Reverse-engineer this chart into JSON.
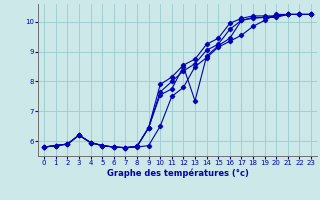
{
  "xlabel": "Graphe des températures (°c)",
  "bg_color": "#cce8e8",
  "line_color": "#0000bb",
  "grid_color": "#99cccc",
  "xlim": [
    -0.5,
    23.5
  ],
  "ylim": [
    5.5,
    10.6
  ],
  "yticks": [
    6,
    7,
    8,
    9,
    10
  ],
  "xticks": [
    0,
    1,
    2,
    3,
    4,
    5,
    6,
    7,
    8,
    9,
    10,
    11,
    12,
    13,
    14,
    15,
    16,
    17,
    18,
    19,
    20,
    21,
    22,
    23
  ],
  "line1_x": [
    0,
    1,
    2,
    3,
    4,
    5,
    6,
    7,
    8,
    9,
    10,
    11,
    12,
    13,
    14,
    15,
    16,
    17,
    18,
    19,
    20,
    21,
    22,
    23
  ],
  "line1_y": [
    5.8,
    5.85,
    5.9,
    6.2,
    5.95,
    5.85,
    5.8,
    5.78,
    5.8,
    5.85,
    6.5,
    7.5,
    7.8,
    8.5,
    8.8,
    9.15,
    9.35,
    9.55,
    9.85,
    10.05,
    10.25,
    10.25,
    10.25,
    10.25
  ],
  "line2_x": [
    0,
    1,
    2,
    3,
    4,
    5,
    6,
    7,
    8,
    9,
    10,
    11,
    12,
    13,
    14,
    15,
    16,
    17,
    18,
    19,
    20,
    21,
    22,
    23
  ],
  "line2_y": [
    5.8,
    5.85,
    5.9,
    6.2,
    5.95,
    5.85,
    5.8,
    5.78,
    5.82,
    6.45,
    7.65,
    8.0,
    8.35,
    8.6,
    9.05,
    9.25,
    9.75,
    10.05,
    10.15,
    10.15,
    10.15,
    10.25,
    10.25,
    10.25
  ],
  "line3_x": [
    0,
    1,
    2,
    3,
    4,
    5,
    6,
    7,
    8,
    9,
    10,
    11,
    12,
    13,
    14,
    15,
    16,
    17,
    18,
    19,
    20,
    21,
    22,
    23
  ],
  "line3_y": [
    5.8,
    5.85,
    5.9,
    6.2,
    5.95,
    5.85,
    5.8,
    5.78,
    5.82,
    6.45,
    7.9,
    8.15,
    8.55,
    8.75,
    9.25,
    9.45,
    9.95,
    10.12,
    10.2,
    10.2,
    10.2,
    10.25,
    10.25,
    10.25
  ],
  "line4_x": [
    0,
    1,
    2,
    3,
    4,
    5,
    6,
    7,
    8,
    9,
    10,
    11,
    12,
    13,
    14,
    15,
    16,
    17,
    18,
    19,
    20,
    21,
    22,
    23
  ],
  "line4_y": [
    5.8,
    5.85,
    5.9,
    6.2,
    5.95,
    5.85,
    5.8,
    5.78,
    5.82,
    6.45,
    7.55,
    7.75,
    8.5,
    7.35,
    8.85,
    9.2,
    9.45,
    10.05,
    10.12,
    10.15,
    10.2,
    10.25,
    10.25,
    10.25
  ],
  "tick_fontsize": 5.0,
  "xlabel_fontsize": 6.0,
  "marker": "D",
  "markersize": 2.2
}
